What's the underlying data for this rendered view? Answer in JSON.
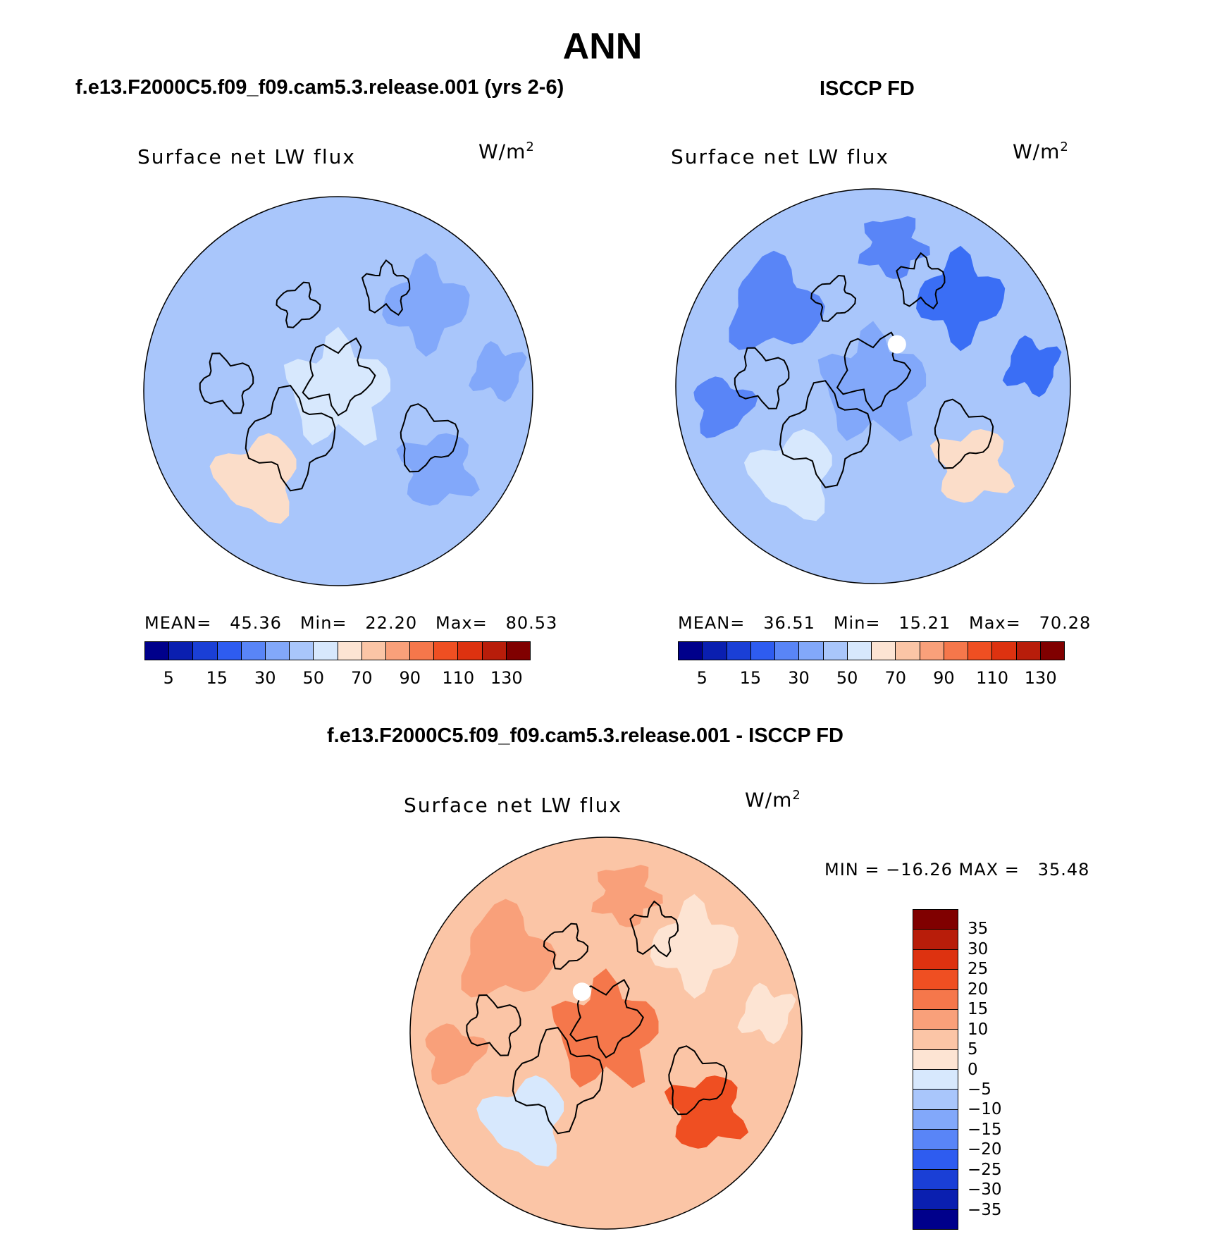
{
  "title": "ANN",
  "panels": [
    {
      "subtitle": "f.e13.F2000C5.f09_f09.cam5.3.release.001 (yrs 2-6)",
      "map_label": "Surface net LW flux",
      "unit": "W/m",
      "unit_sup": "2",
      "stats": "MEAN=   45.36   Min=   22.20   Max=   80.53",
      "ticks": [
        "5",
        "15",
        "30",
        "50",
        "70",
        "90",
        "110",
        "130"
      ],
      "base_color": "#a9c6fb",
      "palette": [
        "#a9c6fb",
        "#82a8fa",
        "#d7e8fd",
        "#fbddc9",
        "#82a8fa",
        "#a9c6fb"
      ]
    },
    {
      "subtitle": "ISCCP FD",
      "map_label": "Surface net LW flux",
      "unit": "W/m",
      "unit_sup": "2",
      "stats": "MEAN=   36.51   Min=   15.21   Max=   70.28",
      "ticks": [
        "5",
        "15",
        "30",
        "50",
        "70",
        "90",
        "110",
        "130"
      ],
      "base_color": "#a9c6fb",
      "palette": [
        "#5985f7",
        "#3a6ef5",
        "#82a8fa",
        "#d7e8fd",
        "#fbddc9",
        "#5985f7"
      ]
    }
  ],
  "colorbar_colors": [
    "#00008b",
    "#0a1fb0",
    "#1a3fd6",
    "#2e5cf0",
    "#5985f7",
    "#82a8fa",
    "#a9c6fb",
    "#d7e8fd",
    "#fde4d3",
    "#fbc5a6",
    "#f9a07a",
    "#f5774b",
    "#ef4f22",
    "#dd3210",
    "#b81d0a",
    "#800000"
  ],
  "diff": {
    "subtitle": "f.e13.F2000C5.f09_f09.cam5.3.release.001 - ISCCP FD",
    "map_label": "Surface net LW flux",
    "unit": "W/m",
    "unit_sup": "2",
    "stats": "MIN = −16.26 MAX =   35.48",
    "levels": [
      "35",
      "30",
      "25",
      "20",
      "15",
      "10",
      "5",
      "0",
      "−5",
      "−10",
      "−15",
      "−20",
      "−25",
      "−30",
      "−35"
    ],
    "colors": [
      "#800000",
      "#b81d0a",
      "#dd3210",
      "#ef4f22",
      "#f5774b",
      "#f9a07a",
      "#fbc5a6",
      "#fde4d3",
      "#d7e8fd",
      "#a9c6fb",
      "#82a8fa",
      "#5985f7",
      "#2e5cf0",
      "#1a3fd6",
      "#0a1fb0",
      "#00008b"
    ],
    "base_color": "#fbc5a6",
    "palette": [
      "#f9a07a",
      "#fde4d3",
      "#f5774b",
      "#d7e8fd",
      "#ef4f22",
      "#f9a07a"
    ]
  }
}
